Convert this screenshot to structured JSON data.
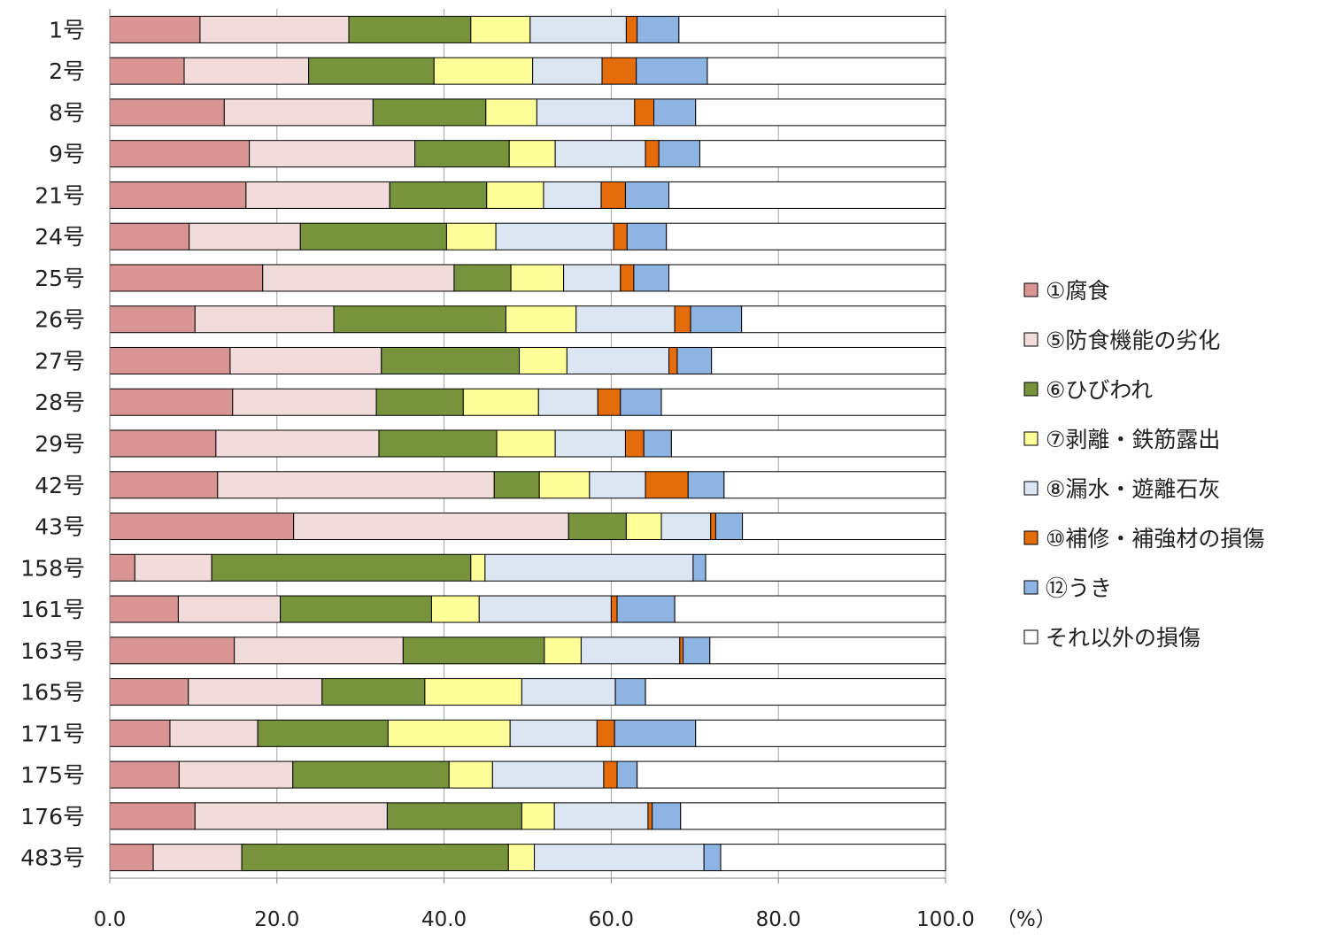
{
  "chart_data": {
    "type": "bar",
    "orientation": "horizontal",
    "stacked": true,
    "title": "",
    "xlabel": "",
    "ylabel": "",
    "unit_label": "（%）",
    "xlim": [
      0,
      100
    ],
    "x_ticks": [
      "0.0",
      "20.0",
      "40.0",
      "60.0",
      "80.0",
      "100.0"
    ],
    "grid": "vertical",
    "legend_placement": "right",
    "categories": [
      "1号",
      "2号",
      "8号",
      "9号",
      "21号",
      "24号",
      "25号",
      "26号",
      "27号",
      "28号",
      "29号",
      "42号",
      "43号",
      "158号",
      "161号",
      "163号",
      "165号",
      "171号",
      "175号",
      "176号",
      "483号"
    ],
    "series": [
      {
        "name": "①腐食",
        "color": "#d99594",
        "values": [
          10.8,
          8.9,
          13.7,
          16.7,
          16.3,
          9.5,
          18.3,
          10.2,
          14.4,
          14.7,
          12.7,
          12.9,
          22.0,
          3.0,
          8.2,
          14.9,
          9.4,
          7.2,
          8.3,
          10.2,
          5.2
        ]
      },
      {
        "name": "⑤防食機能の劣化",
        "color": "#f2dcdb",
        "values": [
          17.8,
          14.9,
          17.8,
          19.8,
          17.2,
          13.3,
          22.9,
          16.6,
          18.1,
          17.2,
          19.5,
          33.1,
          32.9,
          9.2,
          12.2,
          20.2,
          16.0,
          10.5,
          13.6,
          23.0,
          10.6
        ]
      },
      {
        "name": "⑥ひびわれ",
        "color": "#77933c",
        "values": [
          14.6,
          15.0,
          13.5,
          11.3,
          11.6,
          17.5,
          6.8,
          20.6,
          16.5,
          10.4,
          14.1,
          5.4,
          6.9,
          31.0,
          18.1,
          16.9,
          12.3,
          15.6,
          18.7,
          16.1,
          31.9
        ]
      },
      {
        "name": "⑦剥離・鉄筋露出",
        "color": "#ffff99",
        "values": [
          7.1,
          11.8,
          6.1,
          5.5,
          6.8,
          5.9,
          6.3,
          8.4,
          5.7,
          9.0,
          7.0,
          6.0,
          4.2,
          1.7,
          5.7,
          4.4,
          11.6,
          14.6,
          5.2,
          3.9,
          3.1
        ]
      },
      {
        "name": "⑧漏水・遊離石灰",
        "color": "#dce6f2",
        "values": [
          11.5,
          8.3,
          11.7,
          10.8,
          6.9,
          14.1,
          6.8,
          11.8,
          12.2,
          7.1,
          8.4,
          6.7,
          5.9,
          24.9,
          15.8,
          11.8,
          11.2,
          10.4,
          13.3,
          11.2,
          20.3
        ]
      },
      {
        "name": "⑩補修・補強材の損傷",
        "color": "#e46c0a",
        "values": [
          1.3,
          4.1,
          2.3,
          1.6,
          2.9,
          1.6,
          1.6,
          1.9,
          1.0,
          2.7,
          2.2,
          5.1,
          0.6,
          0,
          0.7,
          0.4,
          0,
          2.1,
          1.6,
          0.5,
          0
        ]
      },
      {
        "name": "⑫うき",
        "color": "#8eb4e3",
        "values": [
          5.0,
          8.5,
          5.0,
          4.9,
          5.2,
          4.7,
          4.2,
          6.1,
          4.1,
          4.9,
          3.3,
          4.3,
          3.2,
          1.5,
          6.9,
          3.2,
          3.6,
          9.7,
          2.4,
          3.4,
          2.0
        ]
      },
      {
        "name": "それ以外の損傷",
        "color": "#ffffff",
        "values": [
          31.9,
          28.5,
          29.9,
          29.4,
          33.1,
          33.4,
          33.1,
          24.4,
          28.0,
          34.0,
          32.8,
          26.5,
          24.3,
          28.7,
          32.4,
          28.2,
          35.9,
          29.9,
          36.9,
          31.7,
          26.9
        ]
      }
    ]
  }
}
